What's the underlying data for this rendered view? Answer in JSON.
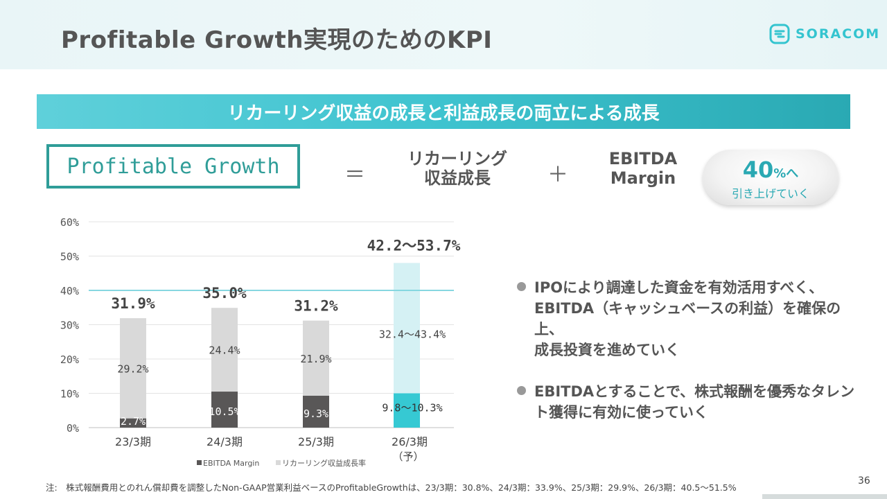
{
  "header": {
    "title": "Profitable Growth実現のためのKPI"
  },
  "logo": {
    "text": "SORACOM"
  },
  "banner": {
    "text": "リカーリング収益の成長と利益成長の両立による成長"
  },
  "formula": {
    "box_label": "Profitable Growth",
    "equals": "＝",
    "term1_line1": "リカーリング",
    "term1_line2": "収益成長",
    "plus": "＋",
    "term2_line1": "EBITDA",
    "term2_line2": "Margin",
    "target_number": "40",
    "target_unit": "%へ",
    "target_sub": "引き上げていく"
  },
  "bullets": [
    {
      "lines": [
        "IPOにより調達した資金を有効活用すべく、",
        "EBITDA（キャッシュベースの利益）を確保の上、",
        "成長投資を進めていく"
      ]
    },
    {
      "lines": [
        "EBITDAとすることで、株式報酬を優秀なタレン",
        "ト獲得に有効に使っていく"
      ]
    }
  ],
  "footnote": "注:　株式報酬費用とのれん償却費を調整したNon-GAAP営業利益ベースのProfitableGrowthは、23/3期：30.8%、24/3期：33.9%、25/3期：29.9%、26/3期：40.5～51.5%",
  "page_number": "36",
  "colors": {
    "accent": "#2aa9b3",
    "ebitda": "#595757",
    "recurring": "#d9d9d9",
    "forecast_ebitda": "#36c9d3",
    "forecast_recurring": "#d5f1f4",
    "target_line": "#86d7e0"
  },
  "chart_data": {
    "type": "bar",
    "stacked": true,
    "categories": [
      "23/3期",
      "24/3期",
      "25/3期",
      "26/3期"
    ],
    "category_sublabels": [
      "",
      "",
      "",
      "（予）"
    ],
    "series": [
      {
        "name": "EBITDA Margin",
        "values": [
          2.7,
          10.5,
          9.3,
          10.0
        ],
        "labels": [
          "2.7%",
          "10.5%",
          "9.3%",
          "9.8～10.3%"
        ]
      },
      {
        "name": "リカーリング収益成長率",
        "values": [
          29.2,
          24.4,
          21.9,
          38.0
        ],
        "labels": [
          "29.2%",
          "24.4%",
          "21.9%",
          "32.4～43.4%"
        ]
      }
    ],
    "totals": [
      "31.9%",
      "35.0%",
      "31.2%",
      "42.2～53.7%"
    ],
    "ylim": [
      0,
      60
    ],
    "yticks": [
      "0%",
      "10%",
      "20%",
      "30%",
      "40%",
      "50%",
      "60%"
    ],
    "target_line_value": 40,
    "legend_position": "bottom",
    "grid": true
  }
}
